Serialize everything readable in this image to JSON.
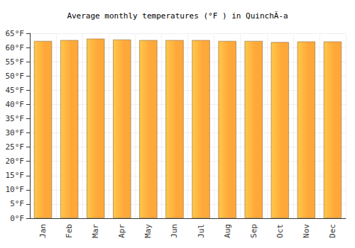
{
  "chart_data": {
    "type": "bar",
    "title": "Average monthly temperatures (°F ) in QuinchÃ-a",
    "categories": [
      "Jan",
      "Feb",
      "Mar",
      "Apr",
      "May",
      "Jun",
      "Jul",
      "Aug",
      "Sep",
      "Oct",
      "Nov",
      "Dec"
    ],
    "values": [
      62.3,
      62.6,
      63.1,
      62.8,
      62.6,
      62.6,
      62.6,
      62.3,
      62.3,
      61.9,
      62.1,
      62.1
    ],
    "color": "#ffa83a",
    "ylim": [
      0,
      65
    ],
    "yticks": [
      {
        "value": 0,
        "label": "0°F"
      },
      {
        "value": 5,
        "label": "5°F"
      },
      {
        "value": 10,
        "label": "10°F"
      },
      {
        "value": 15,
        "label": "15°F"
      },
      {
        "value": 20,
        "label": "20°F"
      },
      {
        "value": 25,
        "label": "25°F"
      },
      {
        "value": 30,
        "label": "30°F"
      },
      {
        "value": 35,
        "label": "35°F"
      },
      {
        "value": 40,
        "label": "40°F"
      },
      {
        "value": 45,
        "label": "45°F"
      },
      {
        "value": 50,
        "label": "50°F"
      },
      {
        "value": 55,
        "label": "55°F"
      },
      {
        "value": 60,
        "label": "60°F"
      },
      {
        "value": 65,
        "label": "65°F"
      }
    ],
    "grid": true
  }
}
